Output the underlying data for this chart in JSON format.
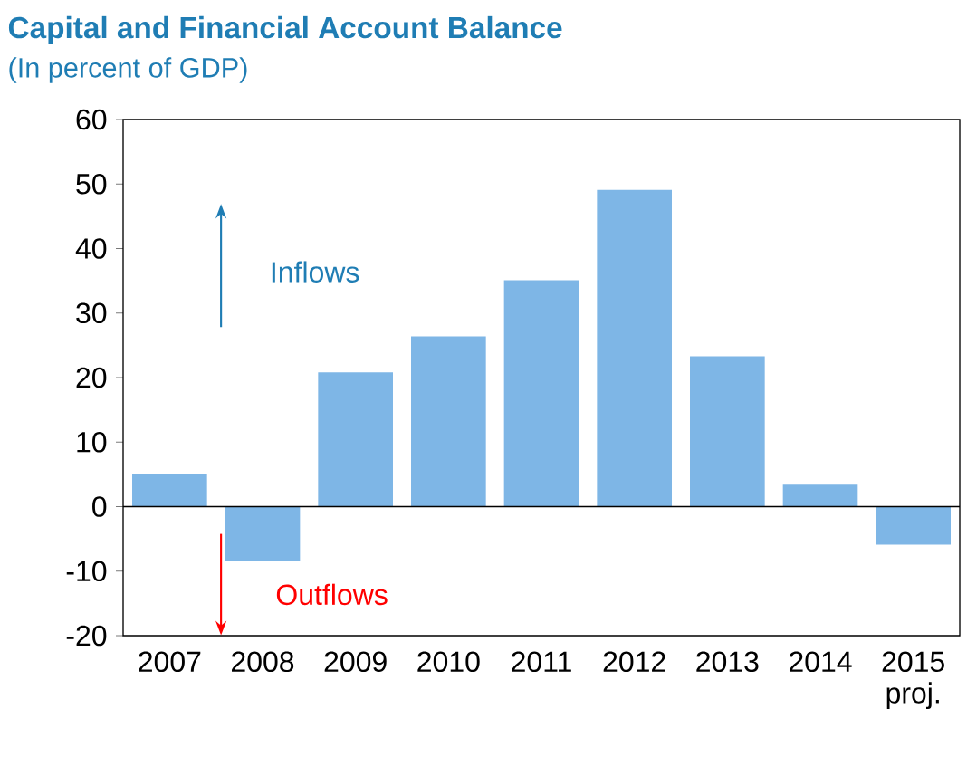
{
  "chart_data": {
    "type": "bar",
    "title": "Capital and Financial Account Balance",
    "subtitle": "(In percent of GDP)",
    "categories": [
      "2007",
      "2008",
      "2009",
      "2010",
      "2011",
      "2012",
      "2013",
      "2014",
      "2015 proj."
    ],
    "values": [
      5.0,
      -8.4,
      20.8,
      26.4,
      35.1,
      49.1,
      23.3,
      3.4,
      -5.9
    ],
    "color": "#7eb6e6",
    "ylim": [
      -20,
      60
    ],
    "yticks": [
      -20,
      -10,
      0,
      10,
      20,
      30,
      40,
      50,
      60
    ],
    "annotations": [
      "Inflows",
      "Outflows"
    ]
  }
}
